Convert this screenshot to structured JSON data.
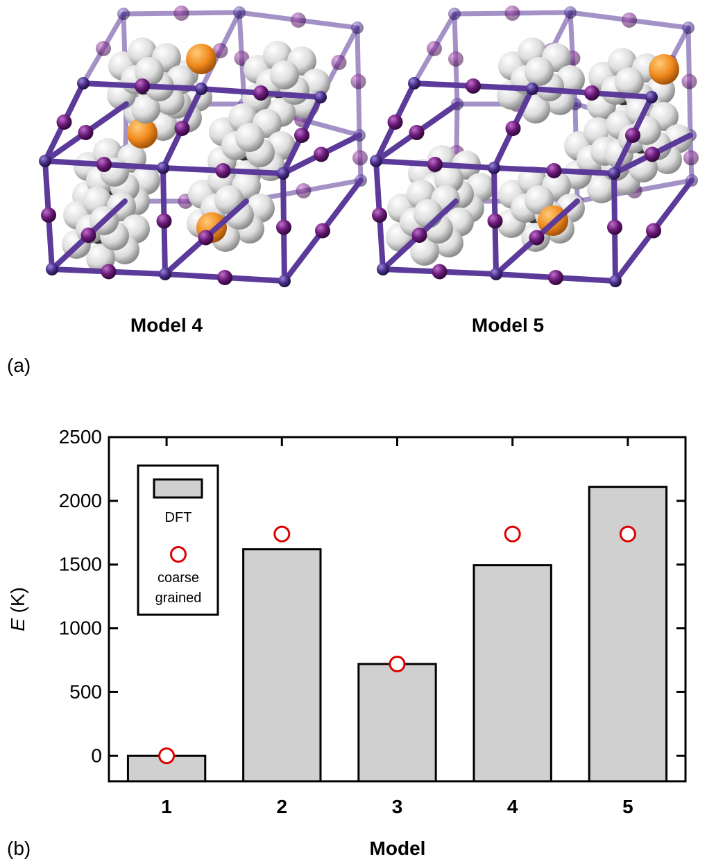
{
  "panel_a": {
    "label": "(a)",
    "models": [
      {
        "caption": "Model 4"
      },
      {
        "caption": "Model 5"
      }
    ],
    "colors": {
      "framework_atom": "#6a1a78",
      "framework_bond": "#5b3a9a",
      "guest_hydrogen": "#e8e8e8",
      "guest_carbon": "#666666",
      "phosphorus": "#f08a1c",
      "nitrogen": "#7a88c8"
    }
  },
  "panel_b": {
    "label": "(b)",
    "legend": {
      "items": [
        {
          "label": "DFT",
          "kind": "bar"
        },
        {
          "label_lines": [
            "coarse",
            "grained"
          ],
          "kind": "circle"
        }
      ]
    },
    "colors": {
      "bar_fill": "#d0d0d0",
      "bar_stroke": "#000000",
      "marker": "#dd0000"
    }
  },
  "chart_data": {
    "type": "bar",
    "categories": [
      "1",
      "2",
      "3",
      "4",
      "5"
    ],
    "series": [
      {
        "name": "DFT",
        "kind": "bar",
        "values": [
          0,
          1620,
          720,
          1495,
          2110
        ]
      },
      {
        "name": "coarse grained",
        "kind": "scatter",
        "values": [
          0,
          1740,
          720,
          1740,
          1740
        ]
      }
    ],
    "xlabel": "Model",
    "ylabel_italic": "E",
    "ylabel_rest": " (K)",
    "ylim": [
      -200,
      2500
    ],
    "yticks": [
      0,
      500,
      1000,
      1500,
      2000,
      2500
    ],
    "grid": false,
    "legend_position": "top-left"
  }
}
